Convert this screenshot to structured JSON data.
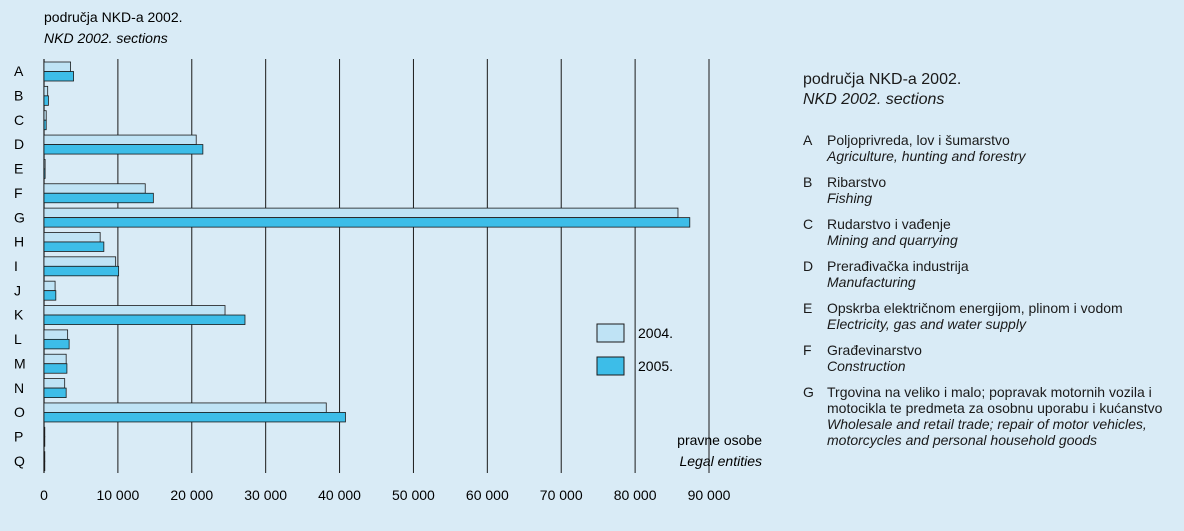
{
  "chart_data": {
    "type": "bar",
    "orientation": "horizontal",
    "title": "područja NKD-a 2002.",
    "subtitle": "NKD 2002. sections",
    "xlabel": "pravne osobe",
    "xlabel_en": "Legal entities",
    "categories": [
      "A",
      "B",
      "C",
      "D",
      "E",
      "F",
      "G",
      "H",
      "I",
      "J",
      "K",
      "L",
      "M",
      "N",
      "O",
      "P",
      "Q"
    ],
    "xlim": [
      0,
      90000
    ],
    "xticks": [
      0,
      10000,
      20000,
      30000,
      40000,
      50000,
      60000,
      70000,
      80000,
      90000
    ],
    "xtick_labels": [
      "0",
      "10 000",
      "20 000",
      "30 000",
      "40 000",
      "50 000",
      "60 000",
      "70 000",
      "80 000",
      "90 000"
    ],
    "grid": "vertical",
    "legend_position": "right",
    "series": [
      {
        "name": "2004.",
        "color": "#bfe3f5",
        "values": [
          3600,
          500,
          300,
          20600,
          150,
          13700,
          85800,
          7600,
          9700,
          1500,
          24500,
          3200,
          3000,
          2800,
          38200,
          80,
          30
        ]
      },
      {
        "name": "2005.",
        "color": "#3dbde8",
        "values": [
          4000,
          600,
          300,
          21500,
          150,
          14800,
          87400,
          8100,
          10100,
          1600,
          27200,
          3400,
          3100,
          3000,
          40800,
          100,
          40
        ]
      }
    ]
  },
  "sections_legend": {
    "title": "područja NKD-a 2002.",
    "title_en": "NKD 2002. sections",
    "items": [
      {
        "letter": "A",
        "hr": "Poljoprivreda, lov i šumarstvo",
        "en": "Agriculture, hunting and forestry"
      },
      {
        "letter": "B",
        "hr": "Ribarstvo",
        "en": "Fishing"
      },
      {
        "letter": "C",
        "hr": "Rudarstvo i vađenje",
        "en": "Mining and quarrying"
      },
      {
        "letter": "D",
        "hr": "Prerađivačka industrija",
        "en": "Manufacturing"
      },
      {
        "letter": "E",
        "hr": "Opskrba električnom energijom, plinom i vodom",
        "en": "Electricity, gas and water supply"
      },
      {
        "letter": "F",
        "hr": "Građevinarstvo",
        "en": "Construction"
      },
      {
        "letter": "G",
        "hr": "Trgovina na veliko i malo; popravak motornih vozila i motocikla te predmeta za osobnu uporabu i kućanstvo",
        "en": "Wholesale and retail trade; repair of motor vehicles, motorcycles and personal household goods"
      }
    ]
  },
  "colors": {
    "background": "#d9ebf6",
    "grid": "#1a1a1a",
    "bar_outline": "#1a1a1a"
  }
}
